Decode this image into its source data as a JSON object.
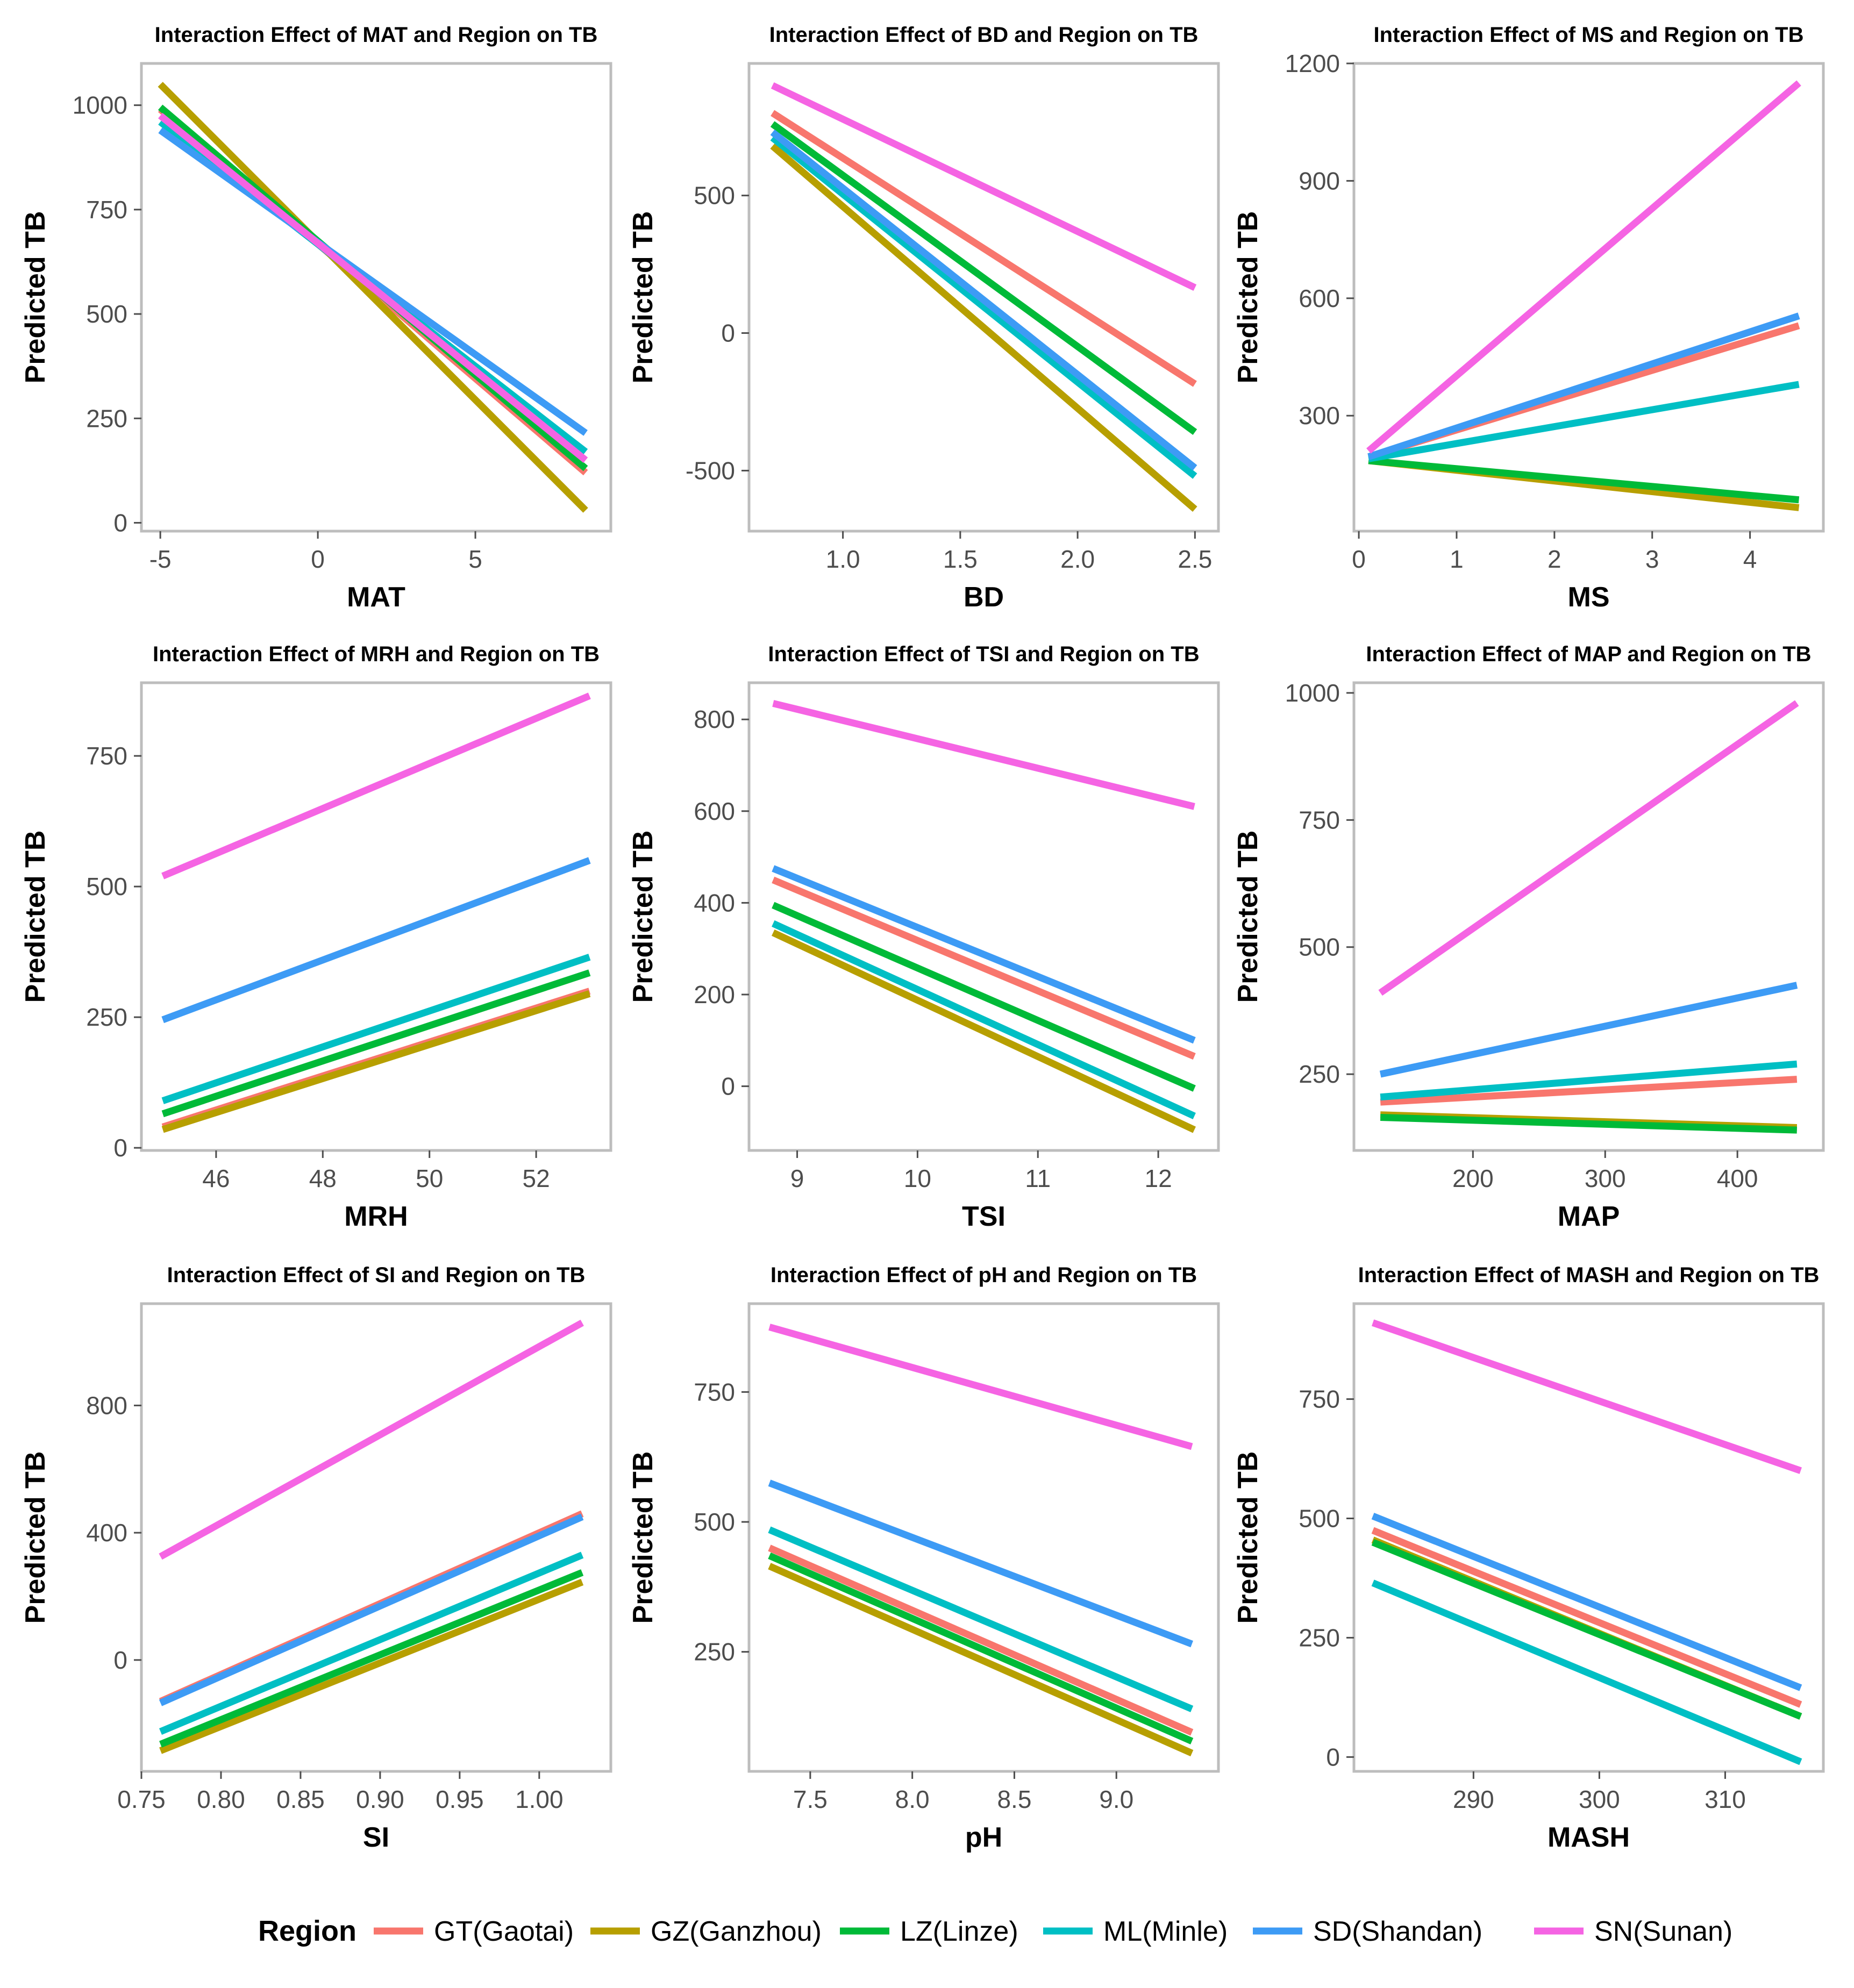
{
  "legend": {
    "title": "Region",
    "entries": [
      {
        "label": "GT(Gaotai)",
        "color": "#F8766D"
      },
      {
        "label": "GZ(Ganzhou)",
        "color": "#B79F00"
      },
      {
        "label": "LZ(Linze)",
        "color": "#00BA38"
      },
      {
        "label": "ML(Minle)",
        "color": "#00BFC4"
      },
      {
        "label": "SD(Shandan)",
        "color": "#3D9BF5"
      },
      {
        "label": "SN(Sunan)",
        "color": "#F564E3"
      }
    ]
  },
  "chart_data": [
    {
      "type": "line",
      "title": "Interaction Effect of MAT and Region on TB",
      "xlabel": "MAT",
      "ylabel": "Predicted TB",
      "xlim": [
        -5.6,
        9.3
      ],
      "ylim": [
        -20,
        1100
      ],
      "xticks": [
        -5,
        0,
        5
      ],
      "xtick_labels": [
        "-5",
        "0",
        "5"
      ],
      "yticks": [
        0,
        250,
        500,
        750,
        1000
      ],
      "ytick_labels": [
        "0",
        "250",
        "500",
        "750",
        "1000"
      ],
      "x_range": [
        -5,
        8.5
      ],
      "series": [
        {
          "name": "GT(Gaotai)",
          "values": [
            990,
            120
          ]
        },
        {
          "name": "GZ(Ganzhou)",
          "values": [
            1050,
            30
          ]
        },
        {
          "name": "LZ(Linze)",
          "values": [
            995,
            130
          ]
        },
        {
          "name": "ML(Minle)",
          "values": [
            960,
            170
          ]
        },
        {
          "name": "SD(Shandan)",
          "values": [
            940,
            215
          ]
        },
        {
          "name": "SN(Sunan)",
          "values": [
            975,
            150
          ]
        }
      ]
    },
    {
      "type": "line",
      "title": "Interaction Effect of BD and Region on TB",
      "xlabel": "BD",
      "ylabel": "Predicted TB",
      "xlim": [
        0.6,
        2.6
      ],
      "ylim": [
        -720,
        980
      ],
      "xticks": [
        1.0,
        1.5,
        2.0,
        2.5
      ],
      "xtick_labels": [
        "1.0",
        "1.5",
        "2.0",
        "2.5"
      ],
      "yticks": [
        -500,
        0,
        500
      ],
      "ytick_labels": [
        "-500",
        "0",
        "500"
      ],
      "x_range": [
        0.7,
        2.5
      ],
      "series": [
        {
          "name": "GT(Gaotai)",
          "values": [
            800,
            -185
          ]
        },
        {
          "name": "GZ(Ganzhou)",
          "values": [
            680,
            -640
          ]
        },
        {
          "name": "LZ(Linze)",
          "values": [
            760,
            -360
          ]
        },
        {
          "name": "ML(Minle)",
          "values": [
            710,
            -520
          ]
        },
        {
          "name": "SD(Shandan)",
          "values": [
            730,
            -490
          ]
        },
        {
          "name": "SN(Sunan)",
          "values": [
            900,
            165
          ]
        }
      ]
    },
    {
      "type": "line",
      "title": "Interaction Effect of MS and Region on TB",
      "xlabel": "MS",
      "ylabel": "Predicted TB",
      "xlim": [
        -0.05,
        4.75
      ],
      "ylim": [
        5,
        1200
      ],
      "xticks": [
        0,
        1,
        2,
        3,
        4
      ],
      "xtick_labels": [
        "0",
        "1",
        "2",
        "3",
        "4"
      ],
      "yticks": [
        300,
        600,
        900,
        1200
      ],
      "ytick_labels": [
        "300",
        "600",
        "900",
        "1200"
      ],
      "x_range": [
        0.1,
        4.5
      ],
      "series": [
        {
          "name": "GT(Gaotai)",
          "values": [
            195,
            530
          ]
        },
        {
          "name": "GZ(Ganzhou)",
          "values": [
            185,
            65
          ]
        },
        {
          "name": "LZ(Linze)",
          "values": [
            185,
            85
          ]
        },
        {
          "name": "ML(Minle)",
          "values": [
            190,
            380
          ]
        },
        {
          "name": "SD(Shandan)",
          "values": [
            195,
            555
          ]
        },
        {
          "name": "SN(Sunan)",
          "values": [
            210,
            1150
          ]
        }
      ]
    },
    {
      "type": "line",
      "title": "Interaction Effect of MRH and Region on TB",
      "xlabel": "MRH",
      "ylabel": "Predicted TB",
      "xlim": [
        44.6,
        53.4
      ],
      "ylim": [
        -5,
        890
      ],
      "xticks": [
        46,
        48,
        50,
        52
      ],
      "xtick_labels": [
        "46",
        "48",
        "50",
        "52"
      ],
      "yticks": [
        0,
        250,
        500,
        750
      ],
      "ytick_labels": [
        "0",
        "250",
        "500",
        "750"
      ],
      "x_range": [
        45,
        53
      ],
      "series": [
        {
          "name": "GT(Gaotai)",
          "values": [
            40,
            300
          ]
        },
        {
          "name": "GZ(Ganzhou)",
          "values": [
            35,
            295
          ]
        },
        {
          "name": "LZ(Linze)",
          "values": [
            65,
            335
          ]
        },
        {
          "name": "ML(Minle)",
          "values": [
            90,
            365
          ]
        },
        {
          "name": "SD(Shandan)",
          "values": [
            245,
            550
          ]
        },
        {
          "name": "SN(Sunan)",
          "values": [
            520,
            865
          ]
        }
      ]
    },
    {
      "type": "line",
      "title": "Interaction Effect of TSI and Region on TB",
      "xlabel": "TSI",
      "ylabel": "Predicted TB",
      "xlim": [
        8.6,
        12.5
      ],
      "ylim": [
        -140,
        880
      ],
      "xticks": [
        9,
        10,
        11,
        12
      ],
      "xtick_labels": [
        "9",
        "10",
        "11",
        "12"
      ],
      "yticks": [
        0,
        200,
        400,
        600,
        800
      ],
      "ytick_labels": [
        "0",
        "200",
        "400",
        "600",
        "800"
      ],
      "x_range": [
        8.8,
        12.3
      ],
      "series": [
        {
          "name": "GT(Gaotai)",
          "values": [
            450,
            65
          ]
        },
        {
          "name": "GZ(Ganzhou)",
          "values": [
            335,
            -95
          ]
        },
        {
          "name": "LZ(Linze)",
          "values": [
            395,
            -5
          ]
        },
        {
          "name": "ML(Minle)",
          "values": [
            355,
            -65
          ]
        },
        {
          "name": "SD(Shandan)",
          "values": [
            475,
            100
          ]
        },
        {
          "name": "SN(Sunan)",
          "values": [
            835,
            610
          ]
        }
      ]
    },
    {
      "type": "line",
      "title": "Interaction Effect of MAP and Region on TB",
      "xlabel": "MAP",
      "ylabel": "Predicted TB",
      "xlim": [
        110,
        465
      ],
      "ylim": [
        100,
        1020
      ],
      "xticks": [
        200,
        300,
        400
      ],
      "xtick_labels": [
        "200",
        "300",
        "400"
      ],
      "yticks": [
        250,
        500,
        750,
        1000
      ],
      "ytick_labels": [
        "250",
        "500",
        "750",
        "1000"
      ],
      "x_range": [
        130,
        445
      ],
      "series": [
        {
          "name": "GT(Gaotai)",
          "values": [
            195,
            240
          ]
        },
        {
          "name": "GZ(Ganzhou)",
          "values": [
            170,
            145
          ]
        },
        {
          "name": "LZ(Linze)",
          "values": [
            165,
            140
          ]
        },
        {
          "name": "ML(Minle)",
          "values": [
            205,
            270
          ]
        },
        {
          "name": "SD(Shandan)",
          "values": [
            250,
            425
          ]
        },
        {
          "name": "SN(Sunan)",
          "values": [
            410,
            980
          ]
        }
      ]
    },
    {
      "type": "line",
      "title": "Interaction Effect of SI and Region on TB",
      "xlabel": "SI",
      "ylabel": "Predicted TB",
      "xlim": [
        0.75,
        1.045
      ],
      "ylim": [
        -350,
        1120
      ],
      "xticks": [
        0.75,
        0.8,
        0.85,
        0.9,
        0.95,
        1.0
      ],
      "xtick_labels": [
        "0.75",
        "0.80",
        "0.85",
        "0.90",
        "0.95",
        "1.00"
      ],
      "yticks": [
        0,
        400,
        800
      ],
      "ytick_labels": [
        "0",
        "400",
        "800"
      ],
      "x_range": [
        0.762,
        1.027
      ],
      "series": [
        {
          "name": "GT(Gaotai)",
          "values": [
            -130,
            460
          ]
        },
        {
          "name": "GZ(Ganzhou)",
          "values": [
            -285,
            245
          ]
        },
        {
          "name": "LZ(Linze)",
          "values": [
            -265,
            275
          ]
        },
        {
          "name": "ML(Minle)",
          "values": [
            -225,
            330
          ]
        },
        {
          "name": "SD(Shandan)",
          "values": [
            -135,
            450
          ]
        },
        {
          "name": "SN(Sunan)",
          "values": [
            325,
            1060
          ]
        }
      ]
    },
    {
      "type": "line",
      "title": "Interaction Effect of pH and Region on TB",
      "xlabel": "pH",
      "ylabel": "Predicted TB",
      "xlim": [
        7.2,
        9.5
      ],
      "ylim": [
        20,
        920
      ],
      "xticks": [
        7.5,
        8.0,
        8.5,
        9.0
      ],
      "xtick_labels": [
        "7.5",
        "8.0",
        "8.5",
        "9.0"
      ],
      "yticks": [
        250,
        500,
        750
      ],
      "ytick_labels": [
        "250",
        "500",
        "750"
      ],
      "x_range": [
        7.3,
        9.37
      ],
      "series": [
        {
          "name": "GT(Gaotai)",
          "values": [
            450,
            95
          ]
        },
        {
          "name": "GZ(Ganzhou)",
          "values": [
            415,
            55
          ]
        },
        {
          "name": "LZ(Linze)",
          "values": [
            435,
            78
          ]
        },
        {
          "name": "ML(Minle)",
          "values": [
            485,
            140
          ]
        },
        {
          "name": "SD(Shandan)",
          "values": [
            575,
            265
          ]
        },
        {
          "name": "SN(Sunan)",
          "values": [
            875,
            645
          ]
        }
      ]
    },
    {
      "type": "line",
      "title": "Interaction Effect of MASH and Region on TB",
      "xlabel": "MASH",
      "ylabel": "Predicted TB",
      "xlim": [
        280.5,
        317.8
      ],
      "ylim": [
        -30,
        950
      ],
      "xticks": [
        290,
        300,
        310
      ],
      "xtick_labels": [
        "290",
        "300",
        "310"
      ],
      "yticks": [
        0,
        250,
        500,
        750
      ],
      "ytick_labels": [
        "0",
        "250",
        "500",
        "750"
      ],
      "x_range": [
        282,
        316
      ],
      "series": [
        {
          "name": "GT(Gaotai)",
          "values": [
            475,
            110
          ]
        },
        {
          "name": "GZ(Ganzhou)",
          "values": [
            455,
            85
          ]
        },
        {
          "name": "LZ(Linze)",
          "values": [
            450,
            85
          ]
        },
        {
          "name": "ML(Minle)",
          "values": [
            365,
            -10
          ]
        },
        {
          "name": "SD(Shandan)",
          "values": [
            505,
            145
          ]
        },
        {
          "name": "SN(Sunan)",
          "values": [
            910,
            600
          ]
        }
      ]
    }
  ]
}
